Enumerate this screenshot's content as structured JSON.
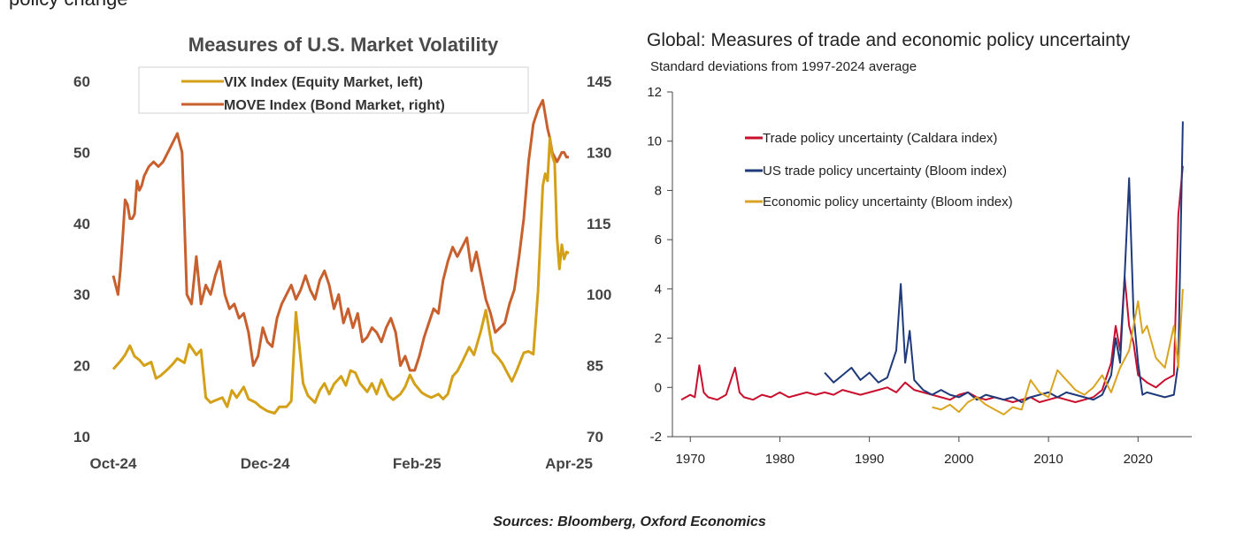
{
  "page": {
    "top_fragment": "policy change",
    "sources": "Sources: Bloomberg, Oxford Economics"
  },
  "chart_data": [
    {
      "type": "line",
      "title": "Measures of U.S. Market Volatility",
      "x_tick_labels": [
        "Oct-24",
        "Dec-24",
        "Feb-25",
        "Apr-25"
      ],
      "y_left": {
        "range": [
          10,
          60
        ],
        "ticks": [
          "10",
          "20",
          "30",
          "40",
          "50",
          "60"
        ]
      },
      "y_right": {
        "range": [
          70,
          145
        ],
        "ticks": [
          "70",
          "85",
          "100",
          "115",
          "130",
          "145"
        ]
      },
      "legend": [
        "VIX Index (Equity Market, left)",
        "MOVE Index (Bond Market, right)"
      ],
      "legend_position": "top-center",
      "colors": {
        "vix": "#d4a017",
        "move": "#c8602e"
      },
      "x_range": [
        0,
        192
      ],
      "series": [
        {
          "name": "VIX Index (Equity Market, left)",
          "axis": "left",
          "x": [
            0,
            3,
            5,
            7,
            9,
            11,
            13,
            16,
            18,
            20,
            23,
            25,
            27,
            30,
            32,
            35,
            37,
            39,
            41,
            43,
            46,
            48,
            50,
            52,
            55,
            57,
            60,
            62,
            65,
            68,
            70,
            73,
            75,
            77,
            80,
            82,
            85,
            87,
            89,
            91,
            93,
            96,
            98,
            100,
            102,
            104,
            107,
            109,
            111,
            113,
            116,
            118,
            121,
            123,
            125,
            127,
            130,
            132,
            134,
            137,
            139,
            141,
            143,
            145,
            147,
            150,
            152,
            155,
            157,
            160,
            162,
            164,
            166,
            168,
            170,
            173,
            175,
            177,
            179,
            181,
            182,
            183,
            184,
            185,
            186,
            187,
            188,
            189,
            190,
            191,
            192
          ],
          "values": [
            19.5,
            20.6,
            21.5,
            22.8,
            21.3,
            20.8,
            20.0,
            20.5,
            18.2,
            18.6,
            19.5,
            20.2,
            21.0,
            20.4,
            23.0,
            21.5,
            22.2,
            15.5,
            14.8,
            15.1,
            15.5,
            14.2,
            16.5,
            15.5,
            17.0,
            15.3,
            14.8,
            14.2,
            13.6,
            13.3,
            14.2,
            14.2,
            15.0,
            27.5,
            17.5,
            15.8,
            14.8,
            16.5,
            17.5,
            16.0,
            17.4,
            18.5,
            17.2,
            19.3,
            19.0,
            17.5,
            16.3,
            17.5,
            16.0,
            18.0,
            15.8,
            15.2,
            16.0,
            17.0,
            18.7,
            17.4,
            16.2,
            15.8,
            15.5,
            16.0,
            15.3,
            16.0,
            18.5,
            19.2,
            20.5,
            22.6,
            21.5,
            25.0,
            27.8,
            21.9,
            21.2,
            20.3,
            19.0,
            17.8,
            19.3,
            21.8,
            22.0,
            21.6,
            30.5,
            45.3,
            47.0,
            46.0,
            52.0,
            49.5,
            48.5,
            38.0,
            33.6,
            37.0,
            35.0,
            36.0,
            35.8
          ]
        },
        {
          "name": "MOVE Index (Bond Market, right)",
          "axis": "right",
          "x": [
            0,
            1,
            2,
            3,
            4,
            5,
            6,
            7,
            8,
            9,
            10,
            11,
            12,
            13,
            15,
            17,
            19,
            21,
            23,
            25,
            27,
            29,
            31,
            33,
            35,
            37,
            39,
            41,
            43,
            45,
            47,
            49,
            51,
            53,
            55,
            57,
            59,
            61,
            63,
            65,
            67,
            69,
            71,
            73,
            75,
            77,
            79,
            81,
            83,
            85,
            87,
            89,
            91,
            93,
            95,
            97,
            99,
            101,
            103,
            105,
            107,
            109,
            111,
            113,
            115,
            117,
            119,
            121,
            123,
            125,
            127,
            129,
            131,
            133,
            135,
            137,
            139,
            141,
            143,
            145,
            147,
            149,
            151,
            153,
            155,
            157,
            159,
            161,
            163,
            165,
            167,
            169,
            171,
            173,
            175,
            177,
            179,
            181,
            183,
            184,
            185,
            186,
            187,
            188,
            189,
            190,
            191,
            192
          ],
          "values": [
            104,
            102,
            100,
            105,
            112,
            120,
            119,
            116,
            116,
            117,
            124,
            122,
            123,
            125,
            127,
            128,
            127,
            128,
            130,
            132,
            134,
            130,
            100,
            98,
            108,
            98,
            102,
            100,
            104,
            107,
            100,
            97,
            98,
            95,
            96,
            92,
            85,
            87,
            93,
            90,
            89,
            95,
            98,
            100,
            102,
            99,
            101,
            104,
            101,
            99,
            103,
            105,
            102,
            97,
            100,
            94,
            97,
            93,
            96,
            90,
            91,
            93,
            92,
            90,
            93,
            95,
            92,
            85,
            87,
            84,
            84,
            87,
            91,
            94,
            97,
            96,
            103,
            107,
            110,
            108,
            110,
            112,
            105,
            109,
            104,
            99,
            96,
            92,
            93,
            94,
            98,
            101,
            108,
            116,
            128,
            136,
            139,
            141,
            135,
            133,
            130,
            129,
            128,
            129,
            130,
            130,
            129,
            129
          ]
        }
      ]
    },
    {
      "type": "line",
      "title": "Global: Measures of trade and economic policy uncertainty",
      "subtitle": "Standard deviations from 1997-2024 average",
      "x_tick_labels": [
        "1970",
        "1980",
        "1990",
        "2000",
        "2010",
        "2020"
      ],
      "y_ticks": [
        "-2",
        "0",
        "2",
        "4",
        "6",
        "8",
        "10",
        "12"
      ],
      "x_range": [
        1968,
        2026
      ],
      "y_range": [
        -2,
        12
      ],
      "legend": [
        "Trade policy uncertainty (Caldara index)",
        "US trade policy uncertainty (Bloom index)",
        "Economic policy uncertainty (Bloom index)"
      ],
      "legend_position": "top-left",
      "colors": {
        "trade": "#c8102e",
        "us_trade": "#1f3a7a",
        "epu": "#d9a520"
      },
      "series": [
        {
          "name": "Trade policy uncertainty (Caldara index)",
          "x": [
            1969,
            1970,
            1970.5,
            1971,
            1971.5,
            1972,
            1973,
            1974,
            1975,
            1975.5,
            1976,
            1977,
            1978,
            1979,
            1980,
            1981,
            1982,
            1983,
            1984,
            1985,
            1986,
            1987,
            1988,
            1989,
            1990,
            1991,
            1992,
            1993,
            1994,
            1995,
            1996,
            1997,
            1998,
            1999,
            2000,
            2001,
            2002,
            2003,
            2004,
            2005,
            2006,
            2007,
            2008,
            2009,
            2010,
            2011,
            2012,
            2013,
            2014,
            2015,
            2016,
            2017,
            2017.5,
            2018,
            2018.5,
            2019,
            2019.5,
            2020,
            2021,
            2022,
            2023,
            2024,
            2024.5,
            2025
          ],
          "values": [
            -0.5,
            -0.3,
            -0.4,
            0.9,
            -0.2,
            -0.4,
            -0.5,
            -0.3,
            0.8,
            -0.2,
            -0.4,
            -0.5,
            -0.3,
            -0.4,
            -0.2,
            -0.4,
            -0.3,
            -0.2,
            -0.3,
            -0.2,
            -0.3,
            -0.1,
            -0.2,
            -0.3,
            -0.2,
            -0.1,
            0.0,
            -0.2,
            0.2,
            -0.1,
            -0.2,
            -0.3,
            -0.4,
            -0.5,
            -0.3,
            -0.2,
            -0.4,
            -0.5,
            -0.4,
            -0.5,
            -0.6,
            -0.5,
            -0.4,
            -0.6,
            -0.5,
            -0.4,
            -0.5,
            -0.6,
            -0.5,
            -0.4,
            -0.1,
            1.0,
            2.5,
            1.5,
            4.5,
            2.5,
            1.8,
            0.5,
            0.2,
            0.0,
            0.3,
            0.5,
            7.0,
            9.0
          ]
        },
        {
          "name": "US trade policy uncertainty (Bloom index)",
          "x": [
            1985,
            1986,
            1987,
            1988,
            1989,
            1990,
            1991,
            1992,
            1993,
            1993.5,
            1994,
            1994.5,
            1995,
            1996,
            1997,
            1998,
            1999,
            2000,
            2001,
            2002,
            2003,
            2004,
            2005,
            2006,
            2007,
            2008,
            2009,
            2010,
            2011,
            2012,
            2013,
            2014,
            2015,
            2016,
            2017,
            2017.5,
            2018,
            2018.5,
            2019,
            2019.5,
            2020,
            2020.5,
            2021,
            2022,
            2023,
            2024,
            2024.5,
            2025
          ],
          "values": [
            0.6,
            0.2,
            0.5,
            0.8,
            0.3,
            0.6,
            0.2,
            0.4,
            1.5,
            4.2,
            1.0,
            2.3,
            0.3,
            -0.1,
            -0.3,
            -0.1,
            -0.3,
            -0.4,
            -0.2,
            -0.5,
            -0.3,
            -0.4,
            -0.5,
            -0.4,
            -0.6,
            -0.4,
            -0.3,
            -0.2,
            -0.4,
            -0.2,
            -0.3,
            -0.4,
            -0.5,
            -0.3,
            0.5,
            2.0,
            1.0,
            4.5,
            8.5,
            3.0,
            1.0,
            -0.3,
            -0.2,
            -0.3,
            -0.4,
            -0.3,
            1.0,
            10.8
          ]
        },
        {
          "name": "Economic policy uncertainty (Bloom index)",
          "x": [
            1997,
            1998,
            1999,
            2000,
            2001,
            2002,
            2003,
            2004,
            2005,
            2006,
            2007,
            2008,
            2009,
            2010,
            2011,
            2012,
            2013,
            2014,
            2015,
            2016,
            2017,
            2018,
            2019,
            2020,
            2020.5,
            2021,
            2022,
            2023,
            2024,
            2024.5,
            2025
          ],
          "values": [
            -0.8,
            -0.9,
            -0.7,
            -1.0,
            -0.6,
            -0.4,
            -0.7,
            -0.9,
            -1.1,
            -0.8,
            -0.9,
            0.3,
            -0.2,
            -0.4,
            0.7,
            0.3,
            -0.1,
            -0.3,
            0.0,
            0.5,
            -0.2,
            0.8,
            1.5,
            3.5,
            2.2,
            2.5,
            1.2,
            0.8,
            2.5,
            0.8,
            4.0
          ]
        }
      ]
    }
  ]
}
